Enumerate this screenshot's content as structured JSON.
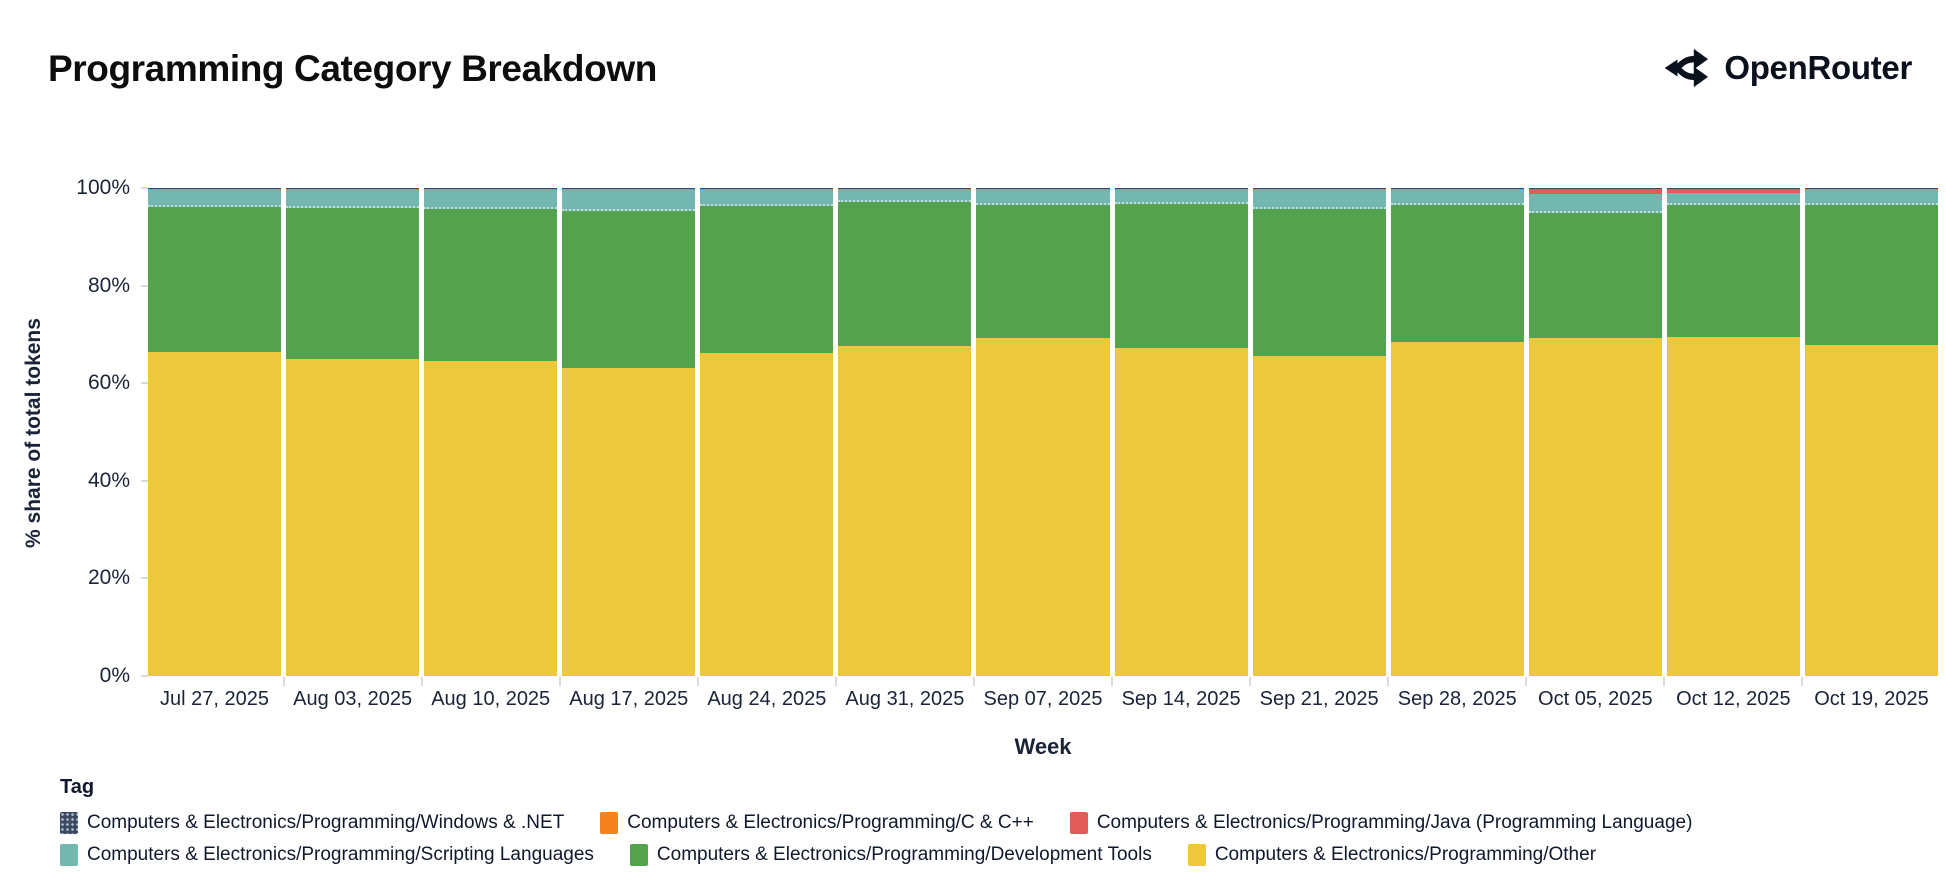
{
  "header": {
    "title": "Programming Category Breakdown",
    "brand": "OpenRouter"
  },
  "chart_data": {
    "type": "bar",
    "variant": "stacked-100-percent",
    "title": "Programming Category Breakdown",
    "xlabel": "Week",
    "ylabel": "% share of total tokens",
    "ylim": [
      0,
      100
    ],
    "y_ticks": [
      "0%",
      "20%",
      "40%",
      "60%",
      "80%",
      "100%"
    ],
    "grid": false,
    "legend_title": "Tag",
    "legend_position": "bottom",
    "categories": [
      "Jul 27, 2025",
      "Aug 03, 2025",
      "Aug 10, 2025",
      "Aug 17, 2025",
      "Aug 24, 2025",
      "Aug 31, 2025",
      "Sep 07, 2025",
      "Sep 14, 2025",
      "Sep 21, 2025",
      "Sep 28, 2025",
      "Oct 05, 2025",
      "Oct 12, 2025",
      "Oct 19, 2025"
    ],
    "series": [
      {
        "key": "other",
        "name": "Computers & Electronics/Programming/Other",
        "color": "#edc73d",
        "values": [
          66.3,
          65.0,
          64.5,
          63.2,
          66.2,
          67.6,
          69.2,
          67.3,
          65.6,
          68.5,
          69.2,
          69.5,
          67.8
        ]
      },
      {
        "key": "dev",
        "name": "Computers & Electronics/Programming/Development Tools",
        "color": "#55a24e",
        "values": [
          29.9,
          31.0,
          31.1,
          32.0,
          30.2,
          29.6,
          27.4,
          29.5,
          30.2,
          28.1,
          25.6,
          27.0,
          28.8
        ]
      },
      {
        "key": "scripting",
        "name": "Computers & Electronics/Programming/Scripting Languages",
        "color": "#74b6b0",
        "values": [
          3.3,
          3.5,
          3.9,
          4.3,
          3.1,
          2.3,
          2.9,
          2.7,
          3.7,
          2.9,
          4.0,
          2.5,
          2.9
        ]
      },
      {
        "key": "java",
        "name": "Computers & Electronics/Programming/Java (Programming Language)",
        "color": "#e15b5b",
        "values": [
          0,
          0,
          0,
          0,
          0,
          0,
          0,
          0,
          0,
          0,
          1.0,
          0.8,
          0
        ]
      },
      {
        "key": "cpp",
        "name": "Computers & Electronics/Programming/C & C++",
        "color": "#f5821f",
        "values": [
          0.4,
          0.4,
          0.4,
          0.4,
          0.4,
          0.4,
          0.4,
          0.4,
          0.4,
          0.4,
          0.1,
          0.1,
          0.4
        ]
      },
      {
        "key": "windows",
        "name": "Computers & Electronics/Programming/Windows & .NET",
        "color": "#3e4a63",
        "pattern": "dots",
        "values": [
          0.1,
          0.1,
          0.1,
          0.1,
          0.1,
          0.1,
          0.1,
          0.1,
          0.1,
          0.1,
          0.1,
          0.1,
          0.1
        ]
      }
    ],
    "legend_display_order": [
      "windows",
      "cpp",
      "java",
      "scripting",
      "dev",
      "other"
    ]
  }
}
